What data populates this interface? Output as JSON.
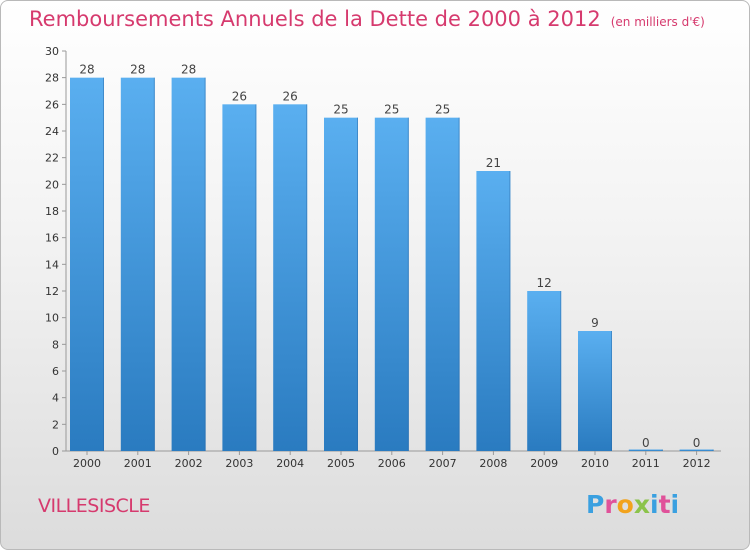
{
  "header": {
    "title": "Remboursements Annuels de la Dette de 2000 à 2012",
    "subtitle": "(en milliers d'€)"
  },
  "footer": {
    "commune": "VILLESISCLE",
    "logo": "Proxiti"
  },
  "colors": {
    "title": "#d63a6e",
    "bar_top": "#5aaff0",
    "bar_bottom": "#2a7bc0"
  },
  "chart_data": {
    "type": "bar",
    "title": "Remboursements Annuels de la Dette de 2000 à 2012",
    "subtitle": "(en milliers d'€)",
    "categories": [
      "2000",
      "2001",
      "2002",
      "2003",
      "2004",
      "2005",
      "2006",
      "2007",
      "2008",
      "2009",
      "2010",
      "2011",
      "2012"
    ],
    "values": [
      28,
      28,
      28,
      26,
      26,
      25,
      25,
      25,
      21,
      12,
      9,
      0,
      0
    ],
    "data_labels": [
      "28",
      "28",
      "28",
      "26",
      "26",
      "25",
      "25",
      "25",
      "21",
      "12",
      "9",
      "0",
      "0"
    ],
    "yticks": [
      "0",
      "2",
      "4",
      "6",
      "8",
      "10",
      "12",
      "14",
      "16",
      "18",
      "20",
      "22",
      "24",
      "26",
      "28",
      "30"
    ],
    "ylim": [
      0,
      30
    ],
    "grid": false,
    "legend": "none"
  }
}
